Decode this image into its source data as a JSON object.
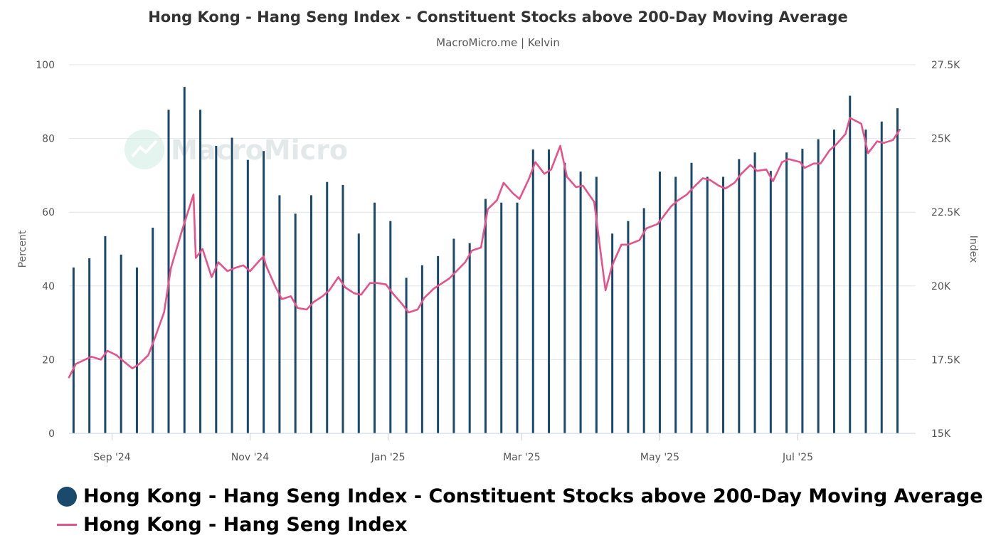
{
  "chart_data": {
    "title": "Hong Kong - Hang Seng Index - Constituent Stocks above 200-Day Moving Average",
    "subtitle": "MacroMicro.me | Kelvin",
    "watermark": "MacroMicro",
    "type": "bar+line",
    "y_left": {
      "label": "Percent",
      "min": 0,
      "max": 100,
      "ticks": [
        "0",
        "20",
        "40",
        "60",
        "80",
        "100"
      ]
    },
    "y_right": {
      "label": "Index",
      "min": 15000,
      "max": 27500,
      "ticks": [
        "15K",
        "17.5K",
        "20K",
        "22.5K",
        "25K",
        "27.5K"
      ]
    },
    "x_range": [
      "2024-08-13",
      "2025-08-22"
    ],
    "x_ticks": [
      {
        "date": "2024-09-01",
        "label": "Sep '24"
      },
      {
        "date": "2024-11-01",
        "label": "Nov '24"
      },
      {
        "date": "2025-01-01",
        "label": "Jan '25"
      },
      {
        "date": "2025-03-01",
        "label": "Mar '25"
      },
      {
        "date": "2025-05-01",
        "label": "May '25"
      },
      {
        "date": "2025-07-01",
        "label": "Jul '25"
      }
    ],
    "series": [
      {
        "name": "Hong Kong - Hang Seng Index - Constituent Stocks above 200-Day Moving Average",
        "type": "bar",
        "axis": "left",
        "color": "#19496b",
        "data": [
          [
            "2024-08-15",
            45
          ],
          [
            "2024-08-22",
            47.5
          ],
          [
            "2024-08-29",
            53.5
          ],
          [
            "2024-09-05",
            48.5
          ],
          [
            "2024-09-12",
            45
          ],
          [
            "2024-09-19",
            55.8
          ],
          [
            "2024-09-26",
            87.8
          ],
          [
            "2024-10-03",
            94
          ],
          [
            "2024-10-10",
            87.8
          ],
          [
            "2024-10-17",
            78
          ],
          [
            "2024-10-24",
            80.2
          ],
          [
            "2024-10-31",
            74.2
          ],
          [
            "2024-11-07",
            76.6
          ],
          [
            "2024-11-14",
            64.6
          ],
          [
            "2024-11-21",
            59.6
          ],
          [
            "2024-11-28",
            64.6
          ],
          [
            "2024-12-05",
            68.2
          ],
          [
            "2024-12-12",
            67.4
          ],
          [
            "2024-12-19",
            54.2
          ],
          [
            "2024-12-26",
            62.6
          ],
          [
            "2025-01-02",
            57.6
          ],
          [
            "2025-01-09",
            42.2
          ],
          [
            "2025-01-16",
            45.6
          ],
          [
            "2025-01-23",
            48.1
          ],
          [
            "2025-01-30",
            52.8
          ],
          [
            "2025-02-06",
            51.6
          ],
          [
            "2025-02-13",
            63.6
          ],
          [
            "2025-02-20",
            62.6
          ],
          [
            "2025-02-27",
            62.6
          ],
          [
            "2025-03-06",
            77
          ],
          [
            "2025-03-13",
            77
          ],
          [
            "2025-03-20",
            73.4
          ],
          [
            "2025-03-27",
            71
          ],
          [
            "2025-04-03",
            69.6
          ],
          [
            "2025-04-10",
            54.2
          ],
          [
            "2025-04-17",
            57.6
          ],
          [
            "2025-04-24",
            61.1
          ],
          [
            "2025-05-01",
            71
          ],
          [
            "2025-05-08",
            69.6
          ],
          [
            "2025-05-15",
            73.4
          ],
          [
            "2025-05-22",
            69.6
          ],
          [
            "2025-05-29",
            69.6
          ],
          [
            "2025-06-05",
            74.4
          ],
          [
            "2025-06-12",
            76.2
          ],
          [
            "2025-06-19",
            71.2
          ],
          [
            "2025-06-26",
            76.2
          ],
          [
            "2025-07-03",
            77.2
          ],
          [
            "2025-07-10",
            79.8
          ],
          [
            "2025-07-17",
            82.4
          ],
          [
            "2025-07-24",
            91.6
          ],
          [
            "2025-07-31",
            82.4
          ],
          [
            "2025-08-07",
            84.6
          ],
          [
            "2025-08-14",
            88.2
          ]
        ]
      },
      {
        "name": "Hong Kong - Hang Seng Index",
        "type": "line",
        "axis": "right",
        "color": "#e6538a",
        "data": [
          [
            "2024-08-13",
            16900
          ],
          [
            "2024-08-16",
            17350
          ],
          [
            "2024-08-20",
            17500
          ],
          [
            "2024-08-23",
            17600
          ],
          [
            "2024-08-27",
            17500
          ],
          [
            "2024-08-30",
            17800
          ],
          [
            "2024-09-03",
            17650
          ],
          [
            "2024-09-06",
            17450
          ],
          [
            "2024-09-10",
            17200
          ],
          [
            "2024-09-13",
            17350
          ],
          [
            "2024-09-17",
            17650
          ],
          [
            "2024-09-20",
            18250
          ],
          [
            "2024-09-24",
            19100
          ],
          [
            "2024-09-27",
            20600
          ],
          [
            "2024-10-02",
            21900
          ],
          [
            "2024-10-07",
            23100
          ],
          [
            "2024-10-08",
            20950
          ],
          [
            "2024-10-11",
            21250
          ],
          [
            "2024-10-15",
            20300
          ],
          [
            "2024-10-18",
            20800
          ],
          [
            "2024-10-22",
            20500
          ],
          [
            "2024-10-25",
            20600
          ],
          [
            "2024-10-29",
            20700
          ],
          [
            "2024-11-01",
            20500
          ],
          [
            "2024-11-05",
            20850
          ],
          [
            "2024-11-07",
            21000
          ],
          [
            "2024-11-08",
            20700
          ],
          [
            "2024-11-12",
            20000
          ],
          [
            "2024-11-15",
            19550
          ],
          [
            "2024-11-19",
            19650
          ],
          [
            "2024-11-22",
            19250
          ],
          [
            "2024-11-26",
            19200
          ],
          [
            "2024-11-29",
            19450
          ],
          [
            "2024-12-03",
            19650
          ],
          [
            "2024-12-06",
            19850
          ],
          [
            "2024-12-10",
            20300
          ],
          [
            "2024-12-13",
            19950
          ],
          [
            "2024-12-17",
            19750
          ],
          [
            "2024-12-20",
            19700
          ],
          [
            "2024-12-24",
            20100
          ],
          [
            "2024-12-27",
            20100
          ],
          [
            "2024-12-31",
            20050
          ],
          [
            "2025-01-03",
            19750
          ],
          [
            "2025-01-07",
            19400
          ],
          [
            "2025-01-10",
            19100
          ],
          [
            "2025-01-14",
            19200
          ],
          [
            "2025-01-17",
            19600
          ],
          [
            "2025-01-21",
            19900
          ],
          [
            "2025-01-24",
            20050
          ],
          [
            "2025-01-28",
            20250
          ],
          [
            "2025-02-04",
            20800
          ],
          [
            "2025-02-07",
            21200
          ],
          [
            "2025-02-11",
            21300
          ],
          [
            "2025-02-14",
            22600
          ],
          [
            "2025-02-18",
            22900
          ],
          [
            "2025-02-21",
            23500
          ],
          [
            "2025-02-25",
            23150
          ],
          [
            "2025-02-28",
            22950
          ],
          [
            "2025-03-04",
            23600
          ],
          [
            "2025-03-07",
            24200
          ],
          [
            "2025-03-11",
            23800
          ],
          [
            "2025-03-14",
            23950
          ],
          [
            "2025-03-18",
            24750
          ],
          [
            "2025-03-21",
            23700
          ],
          [
            "2025-03-25",
            23350
          ],
          [
            "2025-03-28",
            23400
          ],
          [
            "2025-04-02",
            22850
          ],
          [
            "2025-04-07",
            19850
          ],
          [
            "2025-04-10",
            20700
          ],
          [
            "2025-04-14",
            21400
          ],
          [
            "2025-04-17",
            21400
          ],
          [
            "2025-04-22",
            21550
          ],
          [
            "2025-04-25",
            21950
          ],
          [
            "2025-04-30",
            22100
          ],
          [
            "2025-05-06",
            22700
          ],
          [
            "2025-05-09",
            22900
          ],
          [
            "2025-05-13",
            23100
          ],
          [
            "2025-05-16",
            23350
          ],
          [
            "2025-05-20",
            23650
          ],
          [
            "2025-05-23",
            23600
          ],
          [
            "2025-05-27",
            23400
          ],
          [
            "2025-05-30",
            23300
          ],
          [
            "2025-06-03",
            23500
          ],
          [
            "2025-06-06",
            23800
          ],
          [
            "2025-06-10",
            24100
          ],
          [
            "2025-06-13",
            23900
          ],
          [
            "2025-06-17",
            23950
          ],
          [
            "2025-06-20",
            23550
          ],
          [
            "2025-06-24",
            24200
          ],
          [
            "2025-06-27",
            24300
          ],
          [
            "2025-07-02",
            24200
          ],
          [
            "2025-07-04",
            24000
          ],
          [
            "2025-07-08",
            24150
          ],
          [
            "2025-07-11",
            24150
          ],
          [
            "2025-07-15",
            24600
          ],
          [
            "2025-07-18",
            24800
          ],
          [
            "2025-07-22",
            25150
          ],
          [
            "2025-07-24",
            25700
          ],
          [
            "2025-07-29",
            25500
          ],
          [
            "2025-08-01",
            24500
          ],
          [
            "2025-08-05",
            24900
          ],
          [
            "2025-08-08",
            24850
          ],
          [
            "2025-08-12",
            24950
          ],
          [
            "2025-08-15",
            25300
          ]
        ]
      }
    ],
    "legend": [
      {
        "label": "Hong Kong - Hang Seng Index - Constituent Stocks above 200-Day Moving Average",
        "marker": "circle",
        "color": "#19496b"
      },
      {
        "label": "Hong Kong - Hang Seng Index",
        "marker": "line",
        "color": "#e6538a"
      }
    ]
  }
}
